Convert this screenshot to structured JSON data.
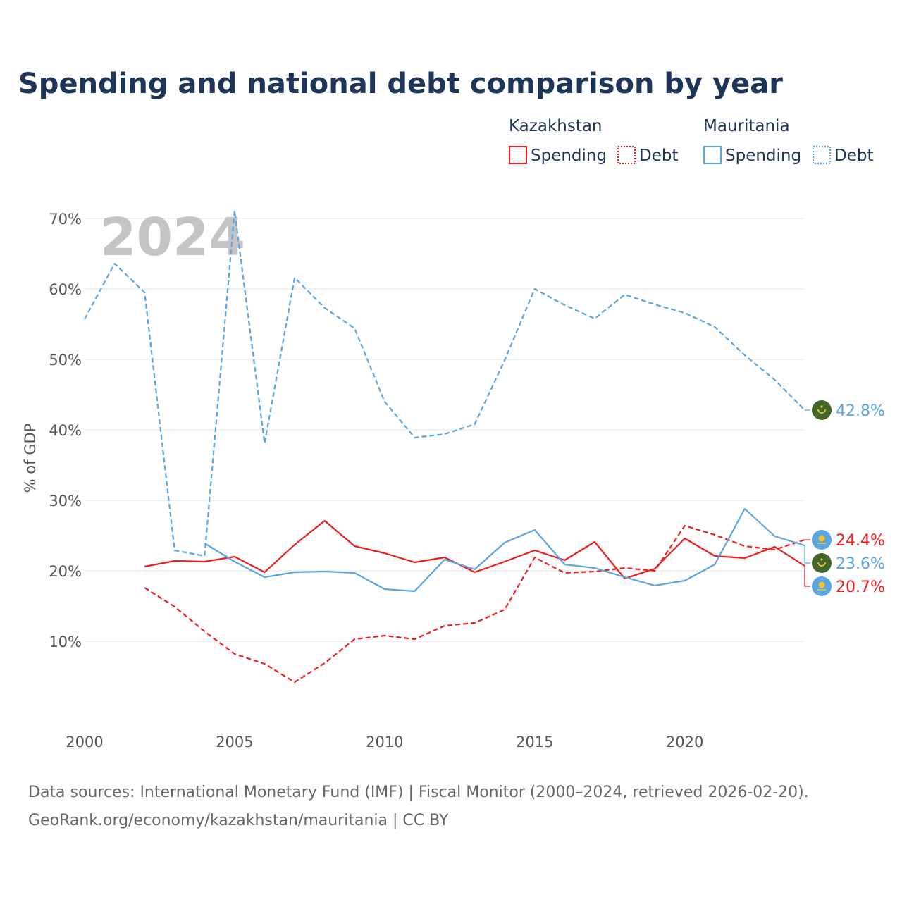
{
  "chart_data": {
    "type": "line",
    "title": "Spending and national debt comparison by year",
    "ylabel": "% of GDP",
    "xlabel": "",
    "xlim": [
      2000,
      2024
    ],
    "ylim": [
      0,
      72
    ],
    "x_ticks": [
      "2000",
      "2005",
      "2010",
      "2015",
      "2020"
    ],
    "y_ticks": [
      "10%",
      "20%",
      "30%",
      "40%",
      "50%",
      "60%",
      "70%"
    ],
    "watermark_year": "2024",
    "legend": {
      "groups": [
        {
          "label": "Kazakhstan",
          "items": [
            "Spending",
            "Debt"
          ]
        },
        {
          "label": "Mauritania",
          "items": [
            "Spending",
            "Debt"
          ]
        }
      ]
    },
    "colors": {
      "kazakhstan": "#ee1c1c",
      "mauritania": "#5aa5e4",
      "mauritania_flag": "#436629",
      "kazakhstan_flag": "#5aa5e4"
    },
    "series": [
      {
        "name": "Kazakhstan Spending",
        "country": "kazakhstan",
        "style": "solid",
        "x": [
          2002,
          2003,
          2004,
          2005,
          2006,
          2007,
          2008,
          2009,
          2010,
          2011,
          2012,
          2013,
          2014,
          2015,
          2016,
          2017,
          2018,
          2019,
          2020,
          2021,
          2022,
          2023,
          2024
        ],
        "values": [
          20.6,
          21.4,
          21.3,
          22.0,
          19.8,
          23.7,
          27.1,
          23.5,
          22.5,
          21.2,
          21.9,
          19.8,
          21.3,
          22.9,
          21.5,
          24.1,
          18.9,
          20.3,
          24.6,
          22.1,
          21.8,
          23.4,
          20.7
        ]
      },
      {
        "name": "Kazakhstan Debt",
        "country": "kazakhstan",
        "style": "dashed",
        "x": [
          2002,
          2003,
          2004,
          2005,
          2006,
          2007,
          2008,
          2009,
          2010,
          2011,
          2012,
          2013,
          2014,
          2015,
          2016,
          2017,
          2018,
          2019,
          2020,
          2021,
          2022,
          2023,
          2024
        ],
        "values": [
          17.6,
          14.9,
          11.4,
          8.2,
          6.8,
          4.2,
          6.9,
          10.3,
          10.8,
          10.3,
          12.2,
          12.6,
          14.5,
          21.9,
          19.7,
          19.9,
          20.4,
          20.0,
          26.4,
          25.1,
          23.5,
          23.0,
          24.4
        ]
      },
      {
        "name": "Mauritania Spending",
        "country": "mauritania",
        "style": "solid",
        "x": [
          2004,
          2005,
          2006,
          2007,
          2008,
          2009,
          2010,
          2011,
          2012,
          2013,
          2014,
          2015,
          2016,
          2017,
          2018,
          2019,
          2020,
          2021,
          2022,
          2023,
          2024
        ],
        "values": [
          23.9,
          21.3,
          19.1,
          19.8,
          19.9,
          19.7,
          17.4,
          17.1,
          21.6,
          20.2,
          24.0,
          25.8,
          20.9,
          20.4,
          19.1,
          17.9,
          18.6,
          20.9,
          28.8,
          24.9,
          23.6
        ]
      },
      {
        "name": "Mauritania Debt",
        "country": "mauritania",
        "style": "dashed",
        "x": [
          2000,
          2001,
          2002,
          2003,
          2004,
          2005,
          2006,
          2007,
          2008,
          2009,
          2010,
          2011,
          2012,
          2013,
          2014,
          2015,
          2016,
          2017,
          2018,
          2019,
          2020,
          2021,
          2022,
          2023,
          2024
        ],
        "values": [
          55.7,
          63.6,
          59.5,
          22.9,
          22.1,
          71.1,
          38.1,
          61.6,
          57.3,
          54.4,
          44.0,
          38.9,
          39.4,
          40.8,
          49.9,
          60.0,
          57.7,
          55.8,
          59.2,
          57.8,
          56.6,
          54.6,
          50.6,
          47.1,
          42.8
        ]
      }
    ],
    "end_labels": [
      {
        "series": "Mauritania Debt",
        "text": "42.8%",
        "country": "mauritania"
      },
      {
        "series": "Kazakhstan Debt",
        "text": "24.4%",
        "country": "kazakhstan"
      },
      {
        "series": "Mauritania Spending",
        "text": "23.6%",
        "country": "mauritania"
      },
      {
        "series": "Kazakhstan Spending",
        "text": "20.7%",
        "country": "kazakhstan"
      }
    ]
  },
  "footer": {
    "source_line": "Data sources: International Monetary Fund (IMF) | Fiscal Monitor (2000–2024, retrieved 2026-02-20).",
    "url_line": "GeoRank.org/economy/kazakhstan/mauritania | CC BY"
  }
}
